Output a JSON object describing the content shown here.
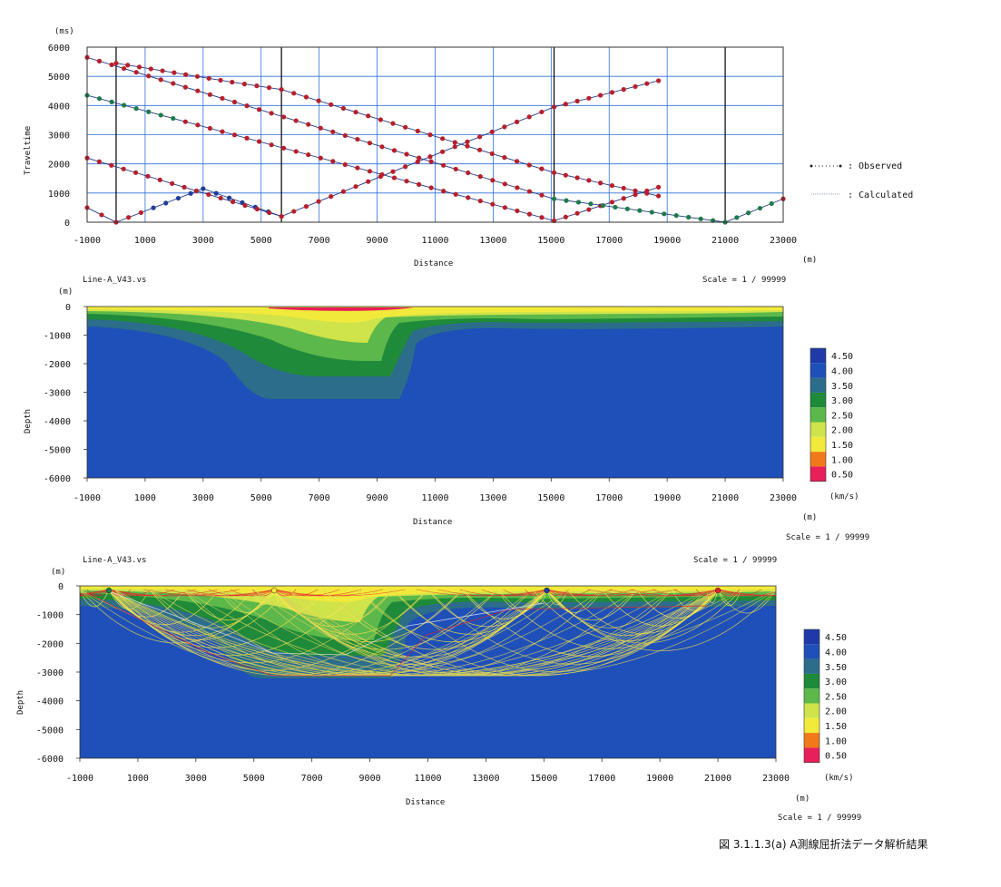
{
  "figure_caption": "図 3.1.1.3(a)  A測線屈折法データ解析結果",
  "colors": {
    "grid": "#2f6fd6",
    "shot_line": "#000000",
    "observed_dot": "#b81f2a",
    "calculated_line": "#203a8a",
    "ray_yellow": "#f0e24a",
    "ray_red": "#e0202c",
    "deep_blue": "#1f4fb8"
  },
  "chart_data": [
    {
      "type": "scatter",
      "id": "traveltime",
      "ylabel": "Traveltime",
      "xlabel": "Distance",
      "y_unit": "(ms)",
      "x_unit": "(m)",
      "xlim": [
        -1000,
        23000
      ],
      "ylim": [
        0,
        6000
      ],
      "xticks": [
        -1000,
        1000,
        3000,
        5000,
        7000,
        9000,
        11000,
        13000,
        15000,
        17000,
        19000,
        21000,
        23000
      ],
      "yticks": [
        0,
        1000,
        2000,
        3000,
        4000,
        5000,
        6000
      ],
      "grid": true,
      "shot_points": [
        0,
        5700,
        15100,
        21000
      ],
      "legend": [
        {
          "name": ": Observed",
          "style": "dots"
        },
        {
          "name": ": Calculated",
          "style": "line"
        }
      ],
      "series": [
        {
          "shot": 0,
          "x": [
            -1000,
            0,
            3000,
            5700
          ],
          "y": [
            500,
            0,
            1150,
            200
          ]
        },
        {
          "shot": 5700,
          "x": [
            -1000,
            5700,
            15100,
            18700
          ],
          "y": [
            2200,
            200,
            3950,
            4850
          ]
        },
        {
          "shot": 15100,
          "x": [
            -1000,
            15100,
            18700
          ],
          "y": [
            4350,
            50,
            1200
          ]
        },
        {
          "shot": 0,
          "x": [
            0,
            4000,
            5700,
            15100,
            18700
          ],
          "y": [
            5450,
            4800,
            4550,
            1700,
            900
          ]
        },
        {
          "shot": 21000,
          "x": [
            -1000,
            15100,
            21000,
            23000
          ],
          "y": [
            5650,
            800,
            0,
            800
          ]
        }
      ]
    },
    {
      "type": "heatmap",
      "id": "velocity_model",
      "title": "Line-A_V43.vs",
      "scale": "Scale = 1 / 99999",
      "scale_below": "Scale = 1 / 99999",
      "xlabel": "Distance",
      "ylabel": "Depth",
      "x_unit": "(m)",
      "y_unit": "(m)",
      "xlim": [
        -1000,
        23000
      ],
      "ylim": [
        -6000,
        0
      ],
      "xticks": [
        -1000,
        1000,
        3000,
        5000,
        7000,
        9000,
        11000,
        13000,
        15000,
        17000,
        19000,
        21000,
        23000
      ],
      "yticks": [
        0,
        -1000,
        -2000,
        -3000,
        -4000,
        -5000,
        -6000
      ],
      "colorbar_unit": "(km/s)",
      "colorbar": [
        {
          "label": "4.50",
          "color": "#1e3aa8"
        },
        {
          "label": "4.00",
          "color": "#1f4fb8"
        },
        {
          "label": "3.50",
          "color": "#2b6d8a"
        },
        {
          "label": "3.00",
          "color": "#1f8a3a"
        },
        {
          "label": "2.50",
          "color": "#5cb84a"
        },
        {
          "label": "2.00",
          "color": "#cfe34a"
        },
        {
          "label": "1.50",
          "color": "#f2ea3a"
        },
        {
          "label": "1.00",
          "color": "#f07a1a"
        },
        {
          "label": "0.50",
          "color": "#e8205a"
        }
      ]
    },
    {
      "type": "heatmap",
      "id": "ray_trace",
      "title": "Line-A_V43.vs",
      "scale": "Scale = 1 / 99999",
      "scale_below": "Scale = 1 / 99999",
      "xlabel": "Distance",
      "ylabel": "Depth",
      "x_unit": "(m)",
      "y_unit": "(m)",
      "xlim": [
        -1000,
        23000
      ],
      "ylim": [
        -6000,
        0
      ],
      "xticks": [
        -1000,
        1000,
        3000,
        5000,
        7000,
        9000,
        11000,
        13000,
        15000,
        17000,
        19000,
        21000,
        23000
      ],
      "yticks": [
        0,
        -1000,
        -2000,
        -3000,
        -4000,
        -5000,
        -6000
      ],
      "colorbar_unit": "(km/s)",
      "colorbar": [
        {
          "label": "4.50",
          "color": "#1e3aa8"
        },
        {
          "label": "4.00",
          "color": "#1f4fb8"
        },
        {
          "label": "3.50",
          "color": "#2b6d8a"
        },
        {
          "label": "3.00",
          "color": "#1f8a3a"
        },
        {
          "label": "2.50",
          "color": "#5cb84a"
        },
        {
          "label": "2.00",
          "color": "#cfe34a"
        },
        {
          "label": "1.50",
          "color": "#f2ea3a"
        },
        {
          "label": "1.00",
          "color": "#f07a1a"
        },
        {
          "label": "0.50",
          "color": "#e8205a"
        }
      ],
      "sources": [
        0,
        5700,
        15100,
        21000
      ]
    }
  ]
}
